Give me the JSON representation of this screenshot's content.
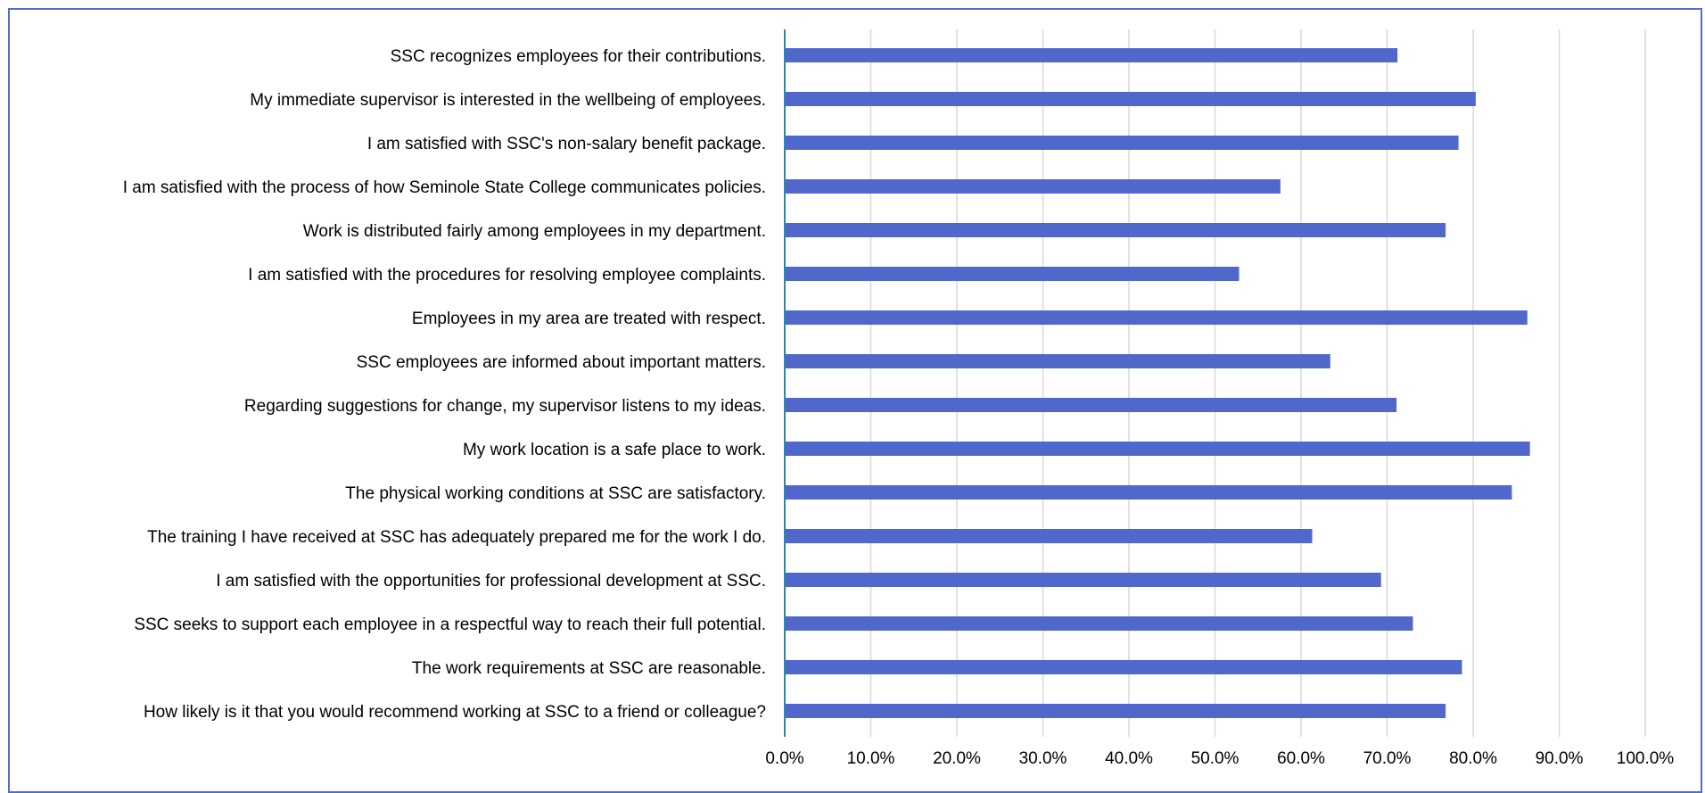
{
  "chart_data": {
    "type": "bar",
    "orientation": "horizontal",
    "categories": [
      "SSC recognizes employees for their contributions.",
      "My immediate supervisor is interested in the wellbeing of employees.",
      "I am satisfied with SSC's non-salary benefit package.",
      "I am satisfied with the process of how Seminole State College communicates policies.",
      "Work is distributed fairly among employees in my department.",
      "I am satisfied with the procedures for resolving employee complaints.",
      "Employees in my area are treated with respect.",
      "SSC employees are informed about important matters.",
      "Regarding suggestions for change, my supervisor listens to my ideas.",
      "My work location is a safe place to work.",
      "The physical working conditions at SSC are satisfactory.",
      "The training I have received at SSC has adequately prepared me for the work I do.",
      "I am satisfied with the opportunities for professional development at SSC.",
      "SSC seeks to support each employee in a respectful way to reach their full potential.",
      "The work requirements at SSC are reasonable.",
      "How likely is it that you would recommend working at SSC to a friend or colleague?"
    ],
    "values": [
      71.2,
      80.3,
      78.3,
      57.6,
      76.8,
      52.8,
      86.3,
      63.4,
      71.1,
      86.6,
      84.5,
      61.3,
      69.3,
      73.0,
      78.7,
      76.8
    ],
    "xlim": [
      0,
      100
    ],
    "ticks": [
      "0.0%",
      "10.0%",
      "20.0%",
      "30.0%",
      "40.0%",
      "50.0%",
      "60.0%",
      "70.0%",
      "80.0%",
      "90.0%",
      "100.0%"
    ],
    "grid": true,
    "bar_color": "#5068cc",
    "title": "",
    "xlabel": "",
    "ylabel": ""
  }
}
